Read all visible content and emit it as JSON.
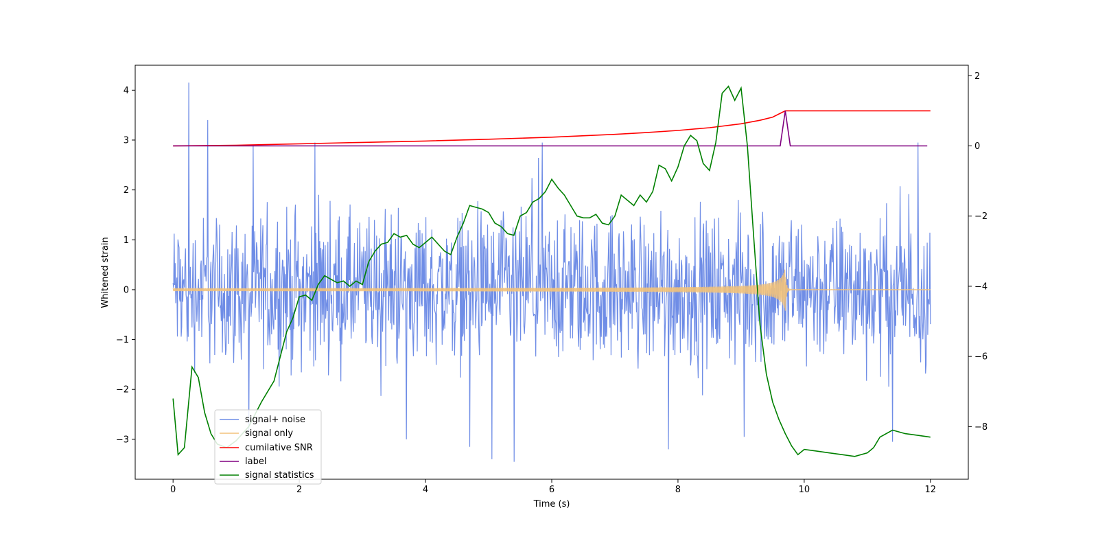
{
  "chart_data": {
    "type": "line",
    "title": "",
    "xlabel": "Time (s)",
    "ylabel": "Whitened strain",
    "xlim": [
      -0.6,
      12.6
    ],
    "ylim": [
      -3.8,
      4.5
    ],
    "y2lim": [
      -9.5,
      2.3
    ],
    "grid": false,
    "legend_position": "lower-left",
    "x_ticks": [
      0,
      2,
      4,
      6,
      8,
      10,
      12
    ],
    "x_tick_labels": [
      "0",
      "2",
      "4",
      "6",
      "8",
      "10",
      "12"
    ],
    "y_ticks": [
      -3,
      -2,
      -1,
      0,
      1,
      2,
      3,
      4
    ],
    "y_tick_labels": [
      "−3",
      "−2",
      "−1",
      "0",
      "1",
      "2",
      "3",
      "4"
    ],
    "y2_ticks": [
      -8,
      -6,
      -4,
      -2,
      0,
      2
    ],
    "y2_tick_labels": [
      "−8",
      "−6",
      "−4",
      "−2",
      "0",
      "2"
    ],
    "series": [
      {
        "name": "signal+ noise",
        "color": "#6f8de6",
        "axis": "left",
        "kind": "noise",
        "t_start": 0,
        "t_end": 12,
        "typical_range": [
          -1.6,
          1.6
        ],
        "spikes": [
          [
            0.25,
            4.15
          ],
          [
            0.55,
            3.4
          ],
          [
            2.25,
            2.95
          ],
          [
            5.85,
            2.95
          ],
          [
            11.8,
            2.95
          ],
          [
            5.05,
            -3.4
          ],
          [
            5.4,
            -3.45
          ],
          [
            3.7,
            -3.0
          ],
          [
            7.85,
            -3.2
          ],
          [
            9.05,
            -2.95
          ],
          [
            11.4,
            -3.05
          ],
          [
            4.7,
            -3.15
          ],
          [
            1.2,
            -2.9
          ]
        ]
      },
      {
        "name": "signal only",
        "color": "#f2c27a",
        "axis": "left",
        "kind": "chirp",
        "t_start": 0,
        "t_end": 12,
        "merger_time": 9.7,
        "peak_amplitude": 0.45,
        "base_amplitude": 0.02
      },
      {
        "name": "cumilative SNR",
        "color": "#ff0000",
        "axis": "right",
        "x": [
          0,
          1,
          2,
          3,
          4,
          5,
          6,
          7,
          7.5,
          8,
          8.5,
          9,
          9.3,
          9.5,
          9.7,
          10,
          11,
          12
        ],
        "values": [
          0,
          0.02,
          0.06,
          0.1,
          0.14,
          0.19,
          0.25,
          0.33,
          0.38,
          0.44,
          0.52,
          0.63,
          0.73,
          0.82,
          1.0,
          1.0,
          1.0,
          1.0
        ]
      },
      {
        "name": "label",
        "color": "#800080",
        "axis": "right",
        "x": [
          0,
          9.62,
          9.7,
          9.78,
          11.95
        ],
        "values": [
          0,
          0,
          1,
          0,
          0
        ]
      },
      {
        "name": "signal statistics",
        "color": "#008000",
        "axis": "right",
        "x": [
          0,
          0.08,
          0.18,
          0.3,
          0.4,
          0.5,
          0.6,
          0.7,
          0.85,
          1.0,
          1.2,
          1.4,
          1.6,
          1.7,
          1.8,
          1.9,
          2.0,
          2.1,
          2.2,
          2.3,
          2.4,
          2.5,
          2.6,
          2.7,
          2.8,
          2.9,
          3.0,
          3.1,
          3.2,
          3.3,
          3.4,
          3.5,
          3.6,
          3.7,
          3.8,
          3.9,
          4.0,
          4.1,
          4.2,
          4.3,
          4.4,
          4.5,
          4.6,
          4.7,
          4.8,
          4.9,
          5.0,
          5.1,
          5.2,
          5.3,
          5.4,
          5.5,
          5.6,
          5.7,
          5.8,
          5.9,
          6.0,
          6.1,
          6.2,
          6.3,
          6.4,
          6.5,
          6.6,
          6.7,
          6.8,
          6.9,
          7.0,
          7.1,
          7.2,
          7.3,
          7.4,
          7.5,
          7.6,
          7.7,
          7.8,
          7.9,
          8.0,
          8.1,
          8.2,
          8.3,
          8.4,
          8.5,
          8.6,
          8.7,
          8.8,
          8.9,
          9.0,
          9.1,
          9.2,
          9.3,
          9.4,
          9.5,
          9.6,
          9.7,
          9.8,
          9.9,
          10.0,
          10.2,
          10.4,
          10.6,
          10.8,
          11.0,
          11.1,
          11.2,
          11.4,
          11.6,
          11.8,
          12.0
        ],
        "values": [
          -7.2,
          -8.8,
          -8.6,
          -6.3,
          -6.6,
          -7.6,
          -8.2,
          -8.5,
          -8.6,
          -8.4,
          -8.0,
          -7.3,
          -6.7,
          -6.0,
          -5.3,
          -4.9,
          -4.3,
          -4.25,
          -4.4,
          -3.95,
          -3.7,
          -3.8,
          -3.9,
          -3.85,
          -4.0,
          -3.85,
          -3.95,
          -3.3,
          -3.0,
          -2.8,
          -2.75,
          -2.5,
          -2.6,
          -2.55,
          -2.8,
          -2.9,
          -2.75,
          -2.6,
          -2.8,
          -3.0,
          -3.1,
          -2.6,
          -2.2,
          -1.7,
          -1.75,
          -1.8,
          -1.9,
          -2.2,
          -2.3,
          -2.5,
          -2.55,
          -2.0,
          -1.9,
          -1.6,
          -1.5,
          -1.3,
          -0.95,
          -1.2,
          -1.4,
          -1.7,
          -2.0,
          -2.05,
          -2.05,
          -1.95,
          -2.2,
          -2.25,
          -2.0,
          -1.4,
          -1.55,
          -1.7,
          -1.4,
          -1.6,
          -1.3,
          -0.55,
          -0.65,
          -1.0,
          -0.6,
          0.0,
          0.3,
          0.15,
          -0.5,
          -0.7,
          0.1,
          1.5,
          1.7,
          1.3,
          1.65,
          0.0,
          -2.6,
          -5.1,
          -6.5,
          -7.3,
          -7.8,
          -8.2,
          -8.55,
          -8.8,
          -8.65,
          -8.7,
          -8.75,
          -8.8,
          -8.85,
          -8.75,
          -8.6,
          -8.3,
          -8.1,
          -8.2,
          -8.25,
          -8.3
        ]
      }
    ]
  }
}
